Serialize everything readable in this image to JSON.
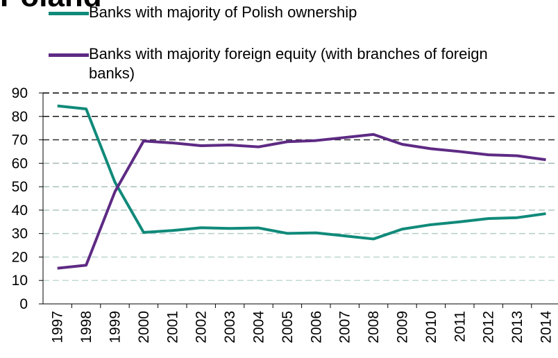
{
  "chart_data": {
    "type": "line",
    "title": "Poland",
    "categories": [
      "1997",
      "1998",
      "1999",
      "2000",
      "2001",
      "2002",
      "2003",
      "2004",
      "2005",
      "2006",
      "2007",
      "2008",
      "2009",
      "2010",
      "2011",
      "2012",
      "2013",
      "2014"
    ],
    "series": [
      {
        "name": "Banks with majority of Polish ownership",
        "color": "#108a7a",
        "values": [
          84.5,
          83.2,
          52,
          30.5,
          31.3,
          32.5,
          32.2,
          32.4,
          30.1,
          30.3,
          29,
          27.7,
          31.9,
          33.8,
          35,
          36.4,
          36.8,
          38.5
        ]
      },
      {
        "name": "Banks with majority foreign equity (with branches of foreign banks)",
        "color": "#5e2a84",
        "values": [
          15.2,
          16.5,
          47.8,
          69.5,
          68.7,
          67.5,
          67.8,
          67,
          69.2,
          69.7,
          71,
          72.3,
          68.1,
          66.2,
          65,
          63.6,
          63.2,
          61.5
        ]
      }
    ],
    "ylim": [
      0,
      90
    ],
    "yticks": [
      0,
      10,
      20,
      30,
      40,
      50,
      60,
      70,
      80,
      90
    ],
    "grid": true
  }
}
